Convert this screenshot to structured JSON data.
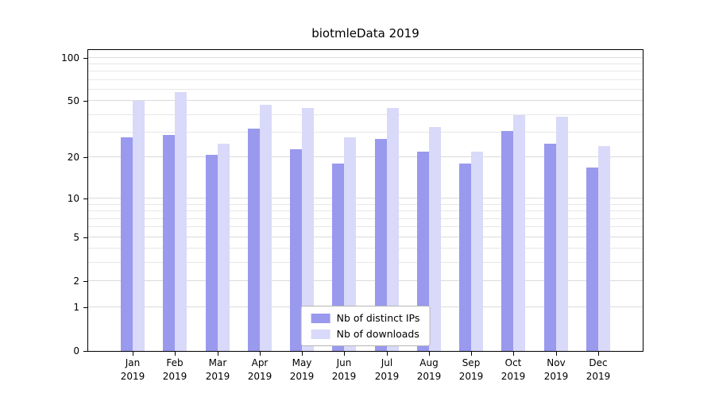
{
  "chart_data": {
    "type": "bar",
    "title": "biotmleData 2019",
    "year": "2019",
    "categories": [
      "Jan",
      "Feb",
      "Mar",
      "Apr",
      "May",
      "Jun",
      "Jul",
      "Aug",
      "Sep",
      "Oct",
      "Nov",
      "Dec"
    ],
    "series": [
      {
        "name": "Nb of distinct IPs",
        "color": "#9999ee",
        "values": [
          28,
          29,
          21,
          32,
          23,
          18,
          27,
          22,
          18,
          31,
          25,
          17
        ]
      },
      {
        "name": "Nb of downloads",
        "color": "#d9d9f9",
        "values": [
          50,
          58,
          25,
          47,
          45,
          28,
          45,
          33,
          22,
          40,
          39,
          24
        ]
      }
    ],
    "y_ticks": [
      0,
      1,
      2,
      5,
      10,
      20,
      50,
      100
    ],
    "gridlines": [
      1,
      2,
      3,
      4,
      5,
      6,
      7,
      8,
      9,
      10,
      20,
      30,
      40,
      50,
      60,
      70,
      80,
      90,
      100
    ],
    "y_scale": "log1p",
    "ylim": [
      0,
      113
    ],
    "legend_position": "lower center",
    "grid": true
  }
}
